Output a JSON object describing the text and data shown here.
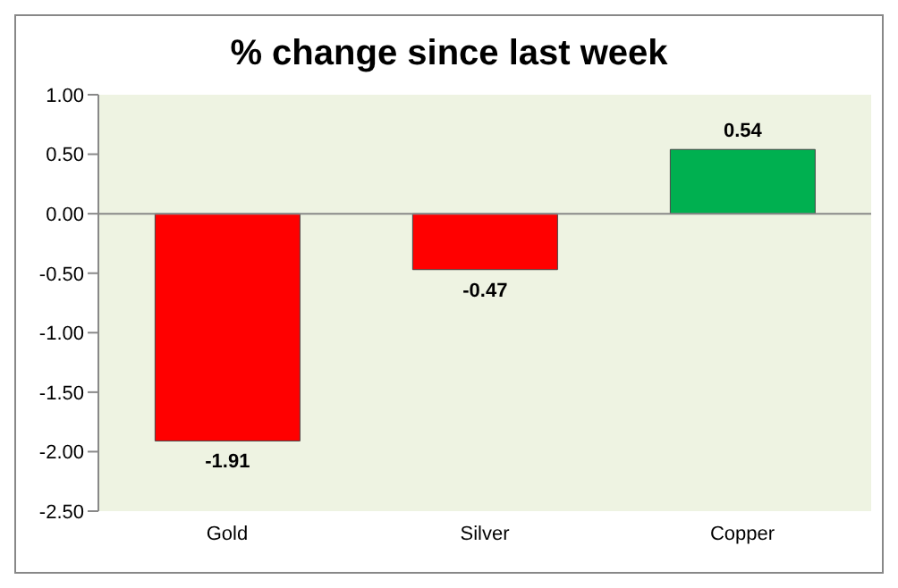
{
  "chart_data": {
    "type": "bar",
    "title": "% change since last week",
    "categories": [
      "Gold",
      "Silver",
      "Copper"
    ],
    "values": [
      -1.91,
      -0.47,
      0.54
    ],
    "colors": [
      "#ff0000",
      "#ff0000",
      "#00b050"
    ],
    "ylim": [
      -2.5,
      1
    ],
    "yticks": [
      {
        "value": 1,
        "label": "1.00"
      },
      {
        "value": 0.5,
        "label": "0.50"
      },
      {
        "value": 0,
        "label": "0.00"
      },
      {
        "value": -0.5,
        "label": "-0.50"
      },
      {
        "value": -1,
        "label": "-1.00"
      },
      {
        "value": -1.5,
        "label": "-1.50"
      },
      {
        "value": -2,
        "label": "-2.00"
      },
      {
        "value": -2.5,
        "label": "-2.50"
      }
    ],
    "data_labels": true
  }
}
